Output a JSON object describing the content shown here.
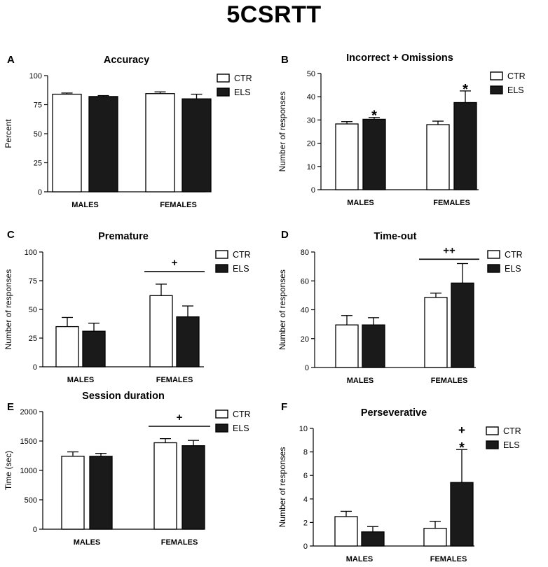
{
  "title": "5CSRTT",
  "chart_data": [
    {
      "type": "bar",
      "panel_label": "A",
      "title": "Accuracy",
      "ylabel": "Percent",
      "xlabel": "",
      "categories": [
        "MALES",
        "FEMALES"
      ],
      "ylim": [
        0,
        100
      ],
      "yticks": [
        0,
        25,
        50,
        75,
        100
      ],
      "ytick_labels": [
        "0",
        "25",
        "50",
        "75",
        "100"
      ],
      "series": [
        {
          "name": "CTR",
          "fill": "#ffffff",
          "values": [
            84,
            84.5
          ],
          "errors": [
            1,
            1.5
          ]
        },
        {
          "name": "ELS",
          "fill": "#1a1a1a",
          "values": [
            82,
            80
          ],
          "errors": [
            0.8,
            4
          ]
        }
      ],
      "annotations": []
    },
    {
      "type": "bar",
      "panel_label": "B",
      "title": "Incorrect + Omissions",
      "ylabel": "Number of responses",
      "xlabel": "",
      "categories": [
        "MALES",
        "FEMALES"
      ],
      "ylim": [
        0,
        50
      ],
      "yticks": [
        0,
        10,
        20,
        30,
        40,
        50
      ],
      "ytick_labels": [
        "0",
        "10",
        "20",
        "30",
        "40",
        "50"
      ],
      "series": [
        {
          "name": "CTR",
          "fill": "#ffffff",
          "values": [
            28.3,
            28
          ],
          "errors": [
            1,
            1.5
          ]
        },
        {
          "name": "ELS",
          "fill": "#1a1a1a",
          "values": [
            30.3,
            37.5
          ],
          "errors": [
            0.8,
            5
          ]
        }
      ],
      "annotations": [
        {
          "text": "*",
          "category": 0,
          "series": 1
        },
        {
          "text": "*",
          "category": 1,
          "series": 1
        }
      ]
    },
    {
      "type": "bar",
      "panel_label": "C",
      "title": "Premature",
      "ylabel": "Number of responses",
      "xlabel": "",
      "categories": [
        "MALES",
        "FEMALES"
      ],
      "ylim": [
        0,
        100
      ],
      "yticks": [
        0,
        25,
        50,
        75,
        100
      ],
      "ytick_labels": [
        "0",
        "25",
        "50",
        "75",
        "100"
      ],
      "series": [
        {
          "name": "CTR",
          "fill": "#ffffff",
          "values": [
            35,
            62
          ],
          "errors": [
            8,
            10
          ]
        },
        {
          "name": "ELS",
          "fill": "#1a1a1a",
          "values": [
            31,
            43.5
          ],
          "errors": [
            7,
            9.5
          ]
        }
      ],
      "annotations": [
        {
          "text": "+",
          "bracket": true,
          "category": 1,
          "y": 83
        }
      ]
    },
    {
      "type": "bar",
      "panel_label": "D",
      "title": "Time-out",
      "ylabel": "Number of responses",
      "xlabel": "",
      "categories": [
        "MALES",
        "FEMALES"
      ],
      "ylim": [
        0,
        80
      ],
      "yticks": [
        0,
        20,
        40,
        60,
        80
      ],
      "ytick_labels": [
        "0",
        "20",
        "40",
        "60",
        "80"
      ],
      "series": [
        {
          "name": "CTR",
          "fill": "#ffffff",
          "values": [
            29.5,
            48.5
          ],
          "errors": [
            6.5,
            3
          ]
        },
        {
          "name": "ELS",
          "fill": "#1a1a1a",
          "values": [
            29.5,
            58.5
          ],
          "errors": [
            5,
            13.5
          ]
        }
      ],
      "annotations": [
        {
          "text": "++",
          "bracket": true,
          "category": 1,
          "y": 75
        }
      ]
    },
    {
      "type": "bar",
      "panel_label": "E",
      "title": "Session duration",
      "ylabel": "Time (sec)",
      "xlabel": "",
      "categories": [
        "MALES",
        "FEMALES"
      ],
      "ylim": [
        0,
        2000
      ],
      "yticks": [
        0,
        500,
        1000,
        1500,
        2000
      ],
      "ytick_labels": [
        "0",
        "500",
        "1000",
        "1500",
        "2000"
      ],
      "series": [
        {
          "name": "CTR",
          "fill": "#ffffff",
          "values": [
            1240,
            1470
          ],
          "errors": [
            75,
            70
          ]
        },
        {
          "name": "ELS",
          "fill": "#1a1a1a",
          "values": [
            1240,
            1420
          ],
          "errors": [
            50,
            90
          ]
        }
      ],
      "annotations": [
        {
          "text": "+",
          "bracket": true,
          "category": 1,
          "y": 1750
        }
      ]
    },
    {
      "type": "bar",
      "panel_label": "F",
      "title": "Perseverative",
      "ylabel": "Number of responses",
      "xlabel": "",
      "categories": [
        "MALES",
        "FEMALES"
      ],
      "ylim": [
        0,
        10
      ],
      "yticks": [
        0,
        2,
        4,
        6,
        8,
        10
      ],
      "ytick_labels": [
        "0",
        "2",
        "4",
        "6",
        "8",
        "10"
      ],
      "series": [
        {
          "name": "CTR",
          "fill": "#ffffff",
          "values": [
            2.5,
            1.5
          ],
          "errors": [
            0.45,
            0.6
          ]
        },
        {
          "name": "ELS",
          "fill": "#1a1a1a",
          "values": [
            1.2,
            5.4
          ],
          "errors": [
            0.45,
            2.8
          ]
        }
      ],
      "annotations": [
        {
          "text": "+",
          "category": 1,
          "series": 1,
          "stack": 1
        },
        {
          "text": "*",
          "category": 1,
          "series": 1,
          "stack": 0
        }
      ]
    }
  ]
}
